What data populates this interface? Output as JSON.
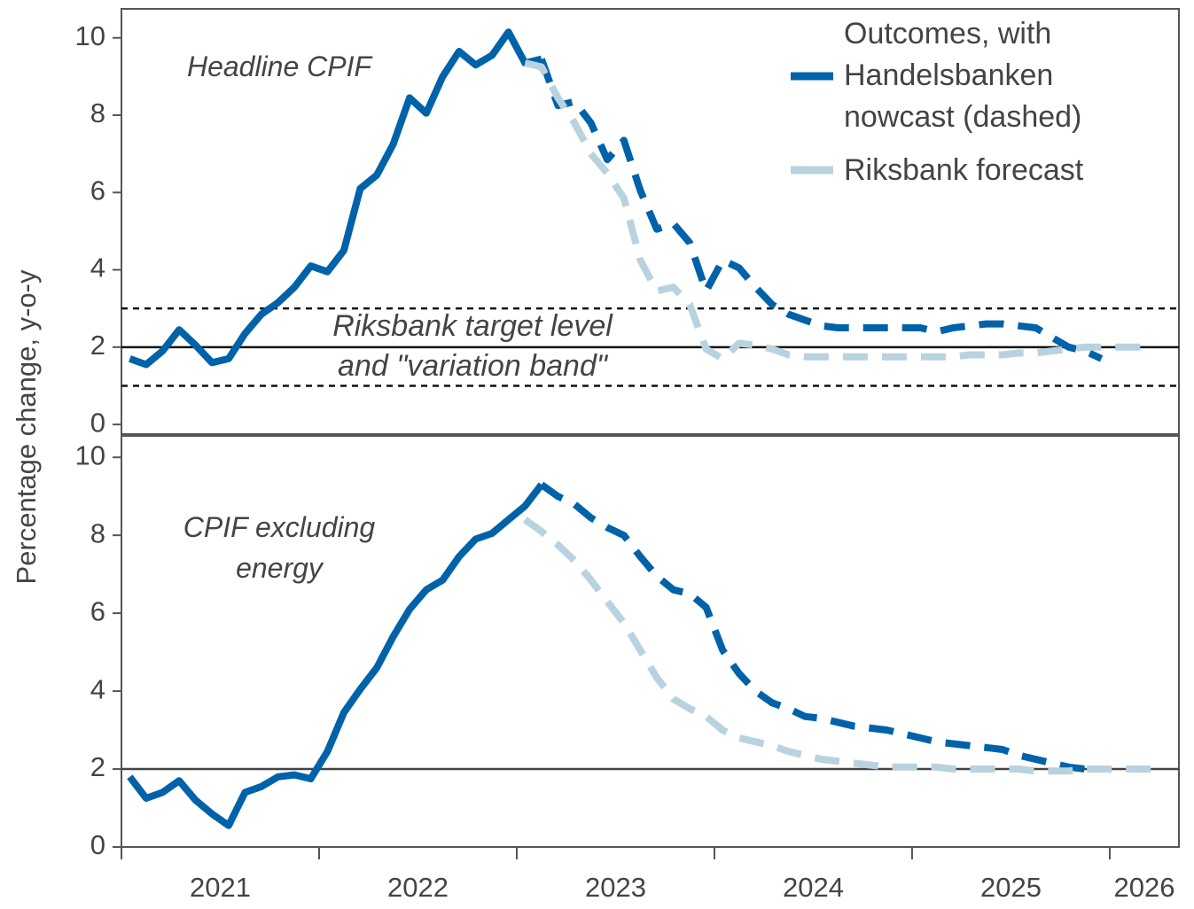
{
  "chart_data": [
    {
      "type": "line",
      "title": "Headline CPIF",
      "ylabel": "Percentage change, y-o-y",
      "xlim": [
        2021,
        2026.35
      ],
      "ylim": [
        -0.25,
        10.75
      ],
      "yticks": [
        0,
        2,
        4,
        6,
        8,
        10
      ],
      "annotations": [
        "Riksbank target level",
        "and \"variation band\""
      ],
      "reference_lines": [
        {
          "value": 2,
          "style": "solid"
        },
        {
          "value": 3,
          "style": "dashed"
        },
        {
          "value": 1,
          "style": "dashed"
        }
      ],
      "legend": "top right",
      "x": [
        2021.042,
        2021.125,
        2021.208,
        2021.292,
        2021.375,
        2021.458,
        2021.542,
        2021.625,
        2021.708,
        2021.792,
        2021.875,
        2021.958,
        2022.042,
        2022.125,
        2022.208,
        2022.292,
        2022.375,
        2022.458,
        2022.542,
        2022.625,
        2022.708,
        2022.792,
        2022.875,
        2022.958,
        2023.042,
        2023.125,
        2023.208,
        2023.292,
        2023.375,
        2023.458,
        2023.542,
        2023.625,
        2023.708,
        2023.792,
        2023.875,
        2023.958,
        2024.042,
        2024.125,
        2024.208,
        2024.292,
        2024.375,
        2024.458,
        2024.542,
        2024.625,
        2024.708,
        2024.792,
        2024.875,
        2024.958,
        2025.042,
        2025.125,
        2025.208,
        2025.292,
        2025.375,
        2025.458,
        2025.542,
        2025.625,
        2025.708,
        2025.792,
        2025.875,
        2025.958,
        2026.042,
        2026.125,
        2026.208
      ],
      "series": [
        {
          "name": "Outcomes, with Handelsbanken nowcast (dashed)",
          "color": "#0062a8",
          "dashed": false,
          "values": [
            1.7,
            1.55,
            1.9,
            2.45,
            2.05,
            1.6,
            1.7,
            2.35,
            2.85,
            3.15,
            3.55,
            4.1,
            3.95,
            4.5,
            6.1,
            6.45,
            7.25,
            8.45,
            8.05,
            9.0,
            9.65,
            9.3,
            9.55,
            10.15,
            9.35,
            9.45,
            null,
            null,
            null,
            null,
            null,
            null,
            null,
            null,
            null,
            null,
            null,
            null,
            null,
            null,
            null,
            null,
            null,
            null,
            null,
            null,
            null,
            null,
            null,
            null,
            null,
            null,
            null,
            null,
            null,
            null,
            null,
            null,
            null,
            null,
            null,
            null,
            null
          ]
        },
        {
          "color": "#0062a8",
          "dashed": true,
          "values": [
            null,
            null,
            null,
            null,
            null,
            null,
            null,
            null,
            null,
            null,
            null,
            null,
            null,
            null,
            null,
            null,
            null,
            null,
            null,
            null,
            null,
            null,
            null,
            null,
            null,
            9.45,
            8.25,
            8.35,
            7.8,
            6.85,
            7.35,
            6.05,
            5.05,
            5.2,
            4.7,
            3.45,
            4.25,
            4.05,
            3.55,
            3.1,
            2.85,
            2.7,
            2.55,
            2.5,
            2.5,
            2.5,
            2.5,
            2.5,
            2.5,
            2.4,
            2.5,
            2.55,
            2.6,
            2.6,
            2.55,
            2.5,
            2.25,
            2.0,
            1.9,
            1.7,
            null,
            null,
            null
          ]
        },
        {
          "name": "Riksbank forecast",
          "color": "#b9d2df",
          "dashed": true,
          "values": [
            null,
            null,
            null,
            null,
            null,
            null,
            null,
            null,
            null,
            null,
            null,
            null,
            null,
            null,
            null,
            null,
            null,
            null,
            null,
            null,
            null,
            null,
            null,
            null,
            9.35,
            9.25,
            8.45,
            7.8,
            7.0,
            6.5,
            5.85,
            4.25,
            3.45,
            3.55,
            3.1,
            1.95,
            1.7,
            2.1,
            2.05,
            1.95,
            1.8,
            1.75,
            1.75,
            1.75,
            1.75,
            1.75,
            1.75,
            1.75,
            1.75,
            1.75,
            1.75,
            1.8,
            1.8,
            1.8,
            1.85,
            1.85,
            1.9,
            1.95,
            2.0,
            2.0,
            2.0,
            2.0,
            2.0
          ]
        }
      ]
    },
    {
      "type": "line",
      "title": "CPIF excluding energy",
      "xlim": [
        2021,
        2026.35
      ],
      "ylim": [
        0,
        10.55
      ],
      "yticks": [
        0,
        2,
        4,
        6,
        8,
        10
      ],
      "xticks": [
        2021,
        2022,
        2023,
        2024,
        2025,
        2026
      ],
      "reference_lines": [
        {
          "value": 2,
          "style": "solid"
        }
      ],
      "x": [
        2021.042,
        2021.125,
        2021.208,
        2021.292,
        2021.375,
        2021.458,
        2021.542,
        2021.625,
        2021.708,
        2021.792,
        2021.875,
        2021.958,
        2022.042,
        2022.125,
        2022.208,
        2022.292,
        2022.375,
        2022.458,
        2022.542,
        2022.625,
        2022.708,
        2022.792,
        2022.875,
        2022.958,
        2023.042,
        2023.125,
        2023.208,
        2023.292,
        2023.375,
        2023.458,
        2023.542,
        2023.625,
        2023.708,
        2023.792,
        2023.875,
        2023.958,
        2024.042,
        2024.125,
        2024.208,
        2024.292,
        2024.375,
        2024.458,
        2024.542,
        2024.625,
        2024.708,
        2024.792,
        2024.875,
        2024.958,
        2025.042,
        2025.125,
        2025.208,
        2025.292,
        2025.375,
        2025.458,
        2025.542,
        2025.625,
        2025.708,
        2025.792,
        2025.875,
        2025.958,
        2026.042,
        2026.125,
        2026.208
      ],
      "series": [
        {
          "color": "#0062a8",
          "dashed": false,
          "values": [
            1.8,
            1.25,
            1.4,
            1.7,
            1.2,
            0.85,
            0.55,
            1.4,
            1.55,
            1.8,
            1.85,
            1.75,
            2.45,
            3.45,
            4.05,
            4.6,
            5.4,
            6.1,
            6.6,
            6.85,
            7.45,
            7.9,
            8.05,
            8.4,
            8.75,
            9.3,
            null,
            null,
            null,
            null,
            null,
            null,
            null,
            null,
            null,
            null,
            null,
            null,
            null,
            null,
            null,
            null,
            null,
            null,
            null,
            null,
            null,
            null,
            null,
            null,
            null,
            null,
            null,
            null,
            null,
            null,
            null,
            null,
            null,
            null,
            null,
            null,
            null
          ]
        },
        {
          "color": "#0062a8",
          "dashed": true,
          "values": [
            null,
            null,
            null,
            null,
            null,
            null,
            null,
            null,
            null,
            null,
            null,
            null,
            null,
            null,
            null,
            null,
            null,
            null,
            null,
            null,
            null,
            null,
            null,
            null,
            null,
            9.3,
            9.0,
            8.8,
            8.45,
            8.2,
            8.0,
            7.45,
            6.95,
            6.6,
            6.5,
            6.15,
            5.05,
            4.45,
            4.0,
            3.7,
            3.55,
            3.35,
            3.3,
            3.2,
            3.1,
            3.05,
            3.0,
            2.9,
            2.8,
            2.7,
            2.65,
            2.6,
            2.55,
            2.5,
            2.35,
            2.25,
            2.15,
            2.05,
            2.0,
            2.0,
            null,
            null,
            null
          ]
        },
        {
          "color": "#b9d2df",
          "dashed": true,
          "values": [
            null,
            null,
            null,
            null,
            null,
            null,
            null,
            null,
            null,
            null,
            null,
            null,
            null,
            null,
            null,
            null,
            null,
            null,
            null,
            null,
            null,
            null,
            null,
            null,
            8.4,
            8.1,
            7.75,
            7.35,
            6.85,
            6.3,
            5.75,
            5.05,
            4.35,
            3.8,
            3.55,
            3.35,
            3.0,
            2.8,
            2.7,
            2.6,
            2.45,
            2.35,
            2.25,
            2.2,
            2.15,
            2.1,
            2.05,
            2.05,
            2.05,
            2.05,
            2.0,
            2.0,
            2.0,
            2.0,
            2.0,
            1.95,
            1.95,
            1.95,
            2.0,
            2.0,
            2.0,
            2.0,
            2.0
          ]
        }
      ]
    }
  ]
}
